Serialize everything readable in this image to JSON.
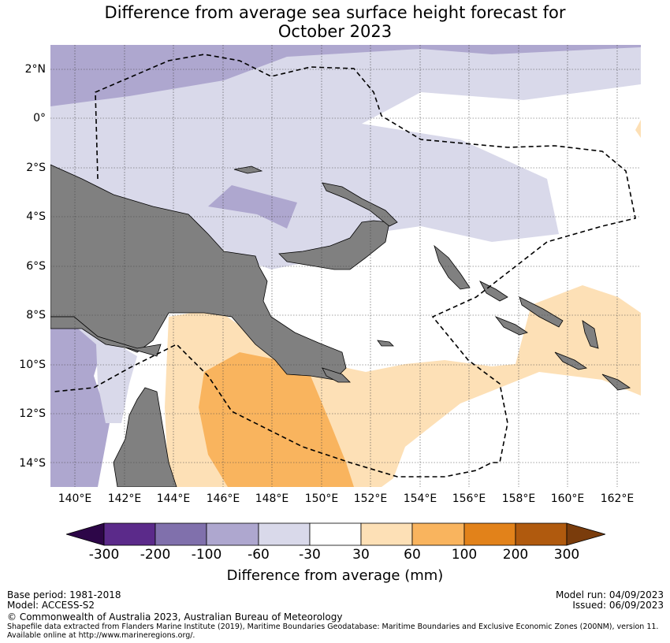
{
  "title_line1": "Difference from average sea surface height forecast for",
  "title_line2": "October 2023",
  "map": {
    "region": "Papua New Guinea and surrounding waters",
    "lat_labels": [
      "2°N",
      "0°",
      "2°S",
      "4°S",
      "6°S",
      "8°S",
      "10°S",
      "12°S",
      "14°S"
    ],
    "lon_labels": [
      "140°E",
      "142°E",
      "144°E",
      "146°E",
      "148°E",
      "150°E",
      "152°E",
      "154°E",
      "156°E",
      "158°E",
      "160°E",
      "162°E"
    ],
    "land_color": "#808080",
    "boundary_style": "dashed EEZ line",
    "gridlines": true
  },
  "colorbar": {
    "label": "Difference from average (mm)",
    "ticks": [
      "-300",
      "-200",
      "-100",
      "-60",
      "-30",
      "30",
      "60",
      "100",
      "200",
      "300"
    ],
    "colors": [
      "#2d0648",
      "#5b2a8a",
      "#8070ac",
      "#aea7cf",
      "#d9d9ea",
      "#ffffff",
      "#fde0b6",
      "#f9b45e",
      "#e2821a",
      "#b05a0e",
      "#7a3c0c"
    ]
  },
  "footer": {
    "base_period": "Base period: 1981-2018",
    "model": "Model: ACCESS-S2",
    "model_run": "Model run: 04/09/2023",
    "issued": "Issued: 06/09/2023",
    "copyright": "© Commonwealth of Australia 2023, Australian Bureau of Meteorology",
    "shapefile_line1": "Shapefile data extracted from Flanders Marine Institute (2019), Maritime Boundaries Geodatabase: Maritime Boundaries and Exclusive Economic Zones (200NM), version 11.",
    "shapefile_line2": "Available online at http://www.marineregions.org/."
  }
}
